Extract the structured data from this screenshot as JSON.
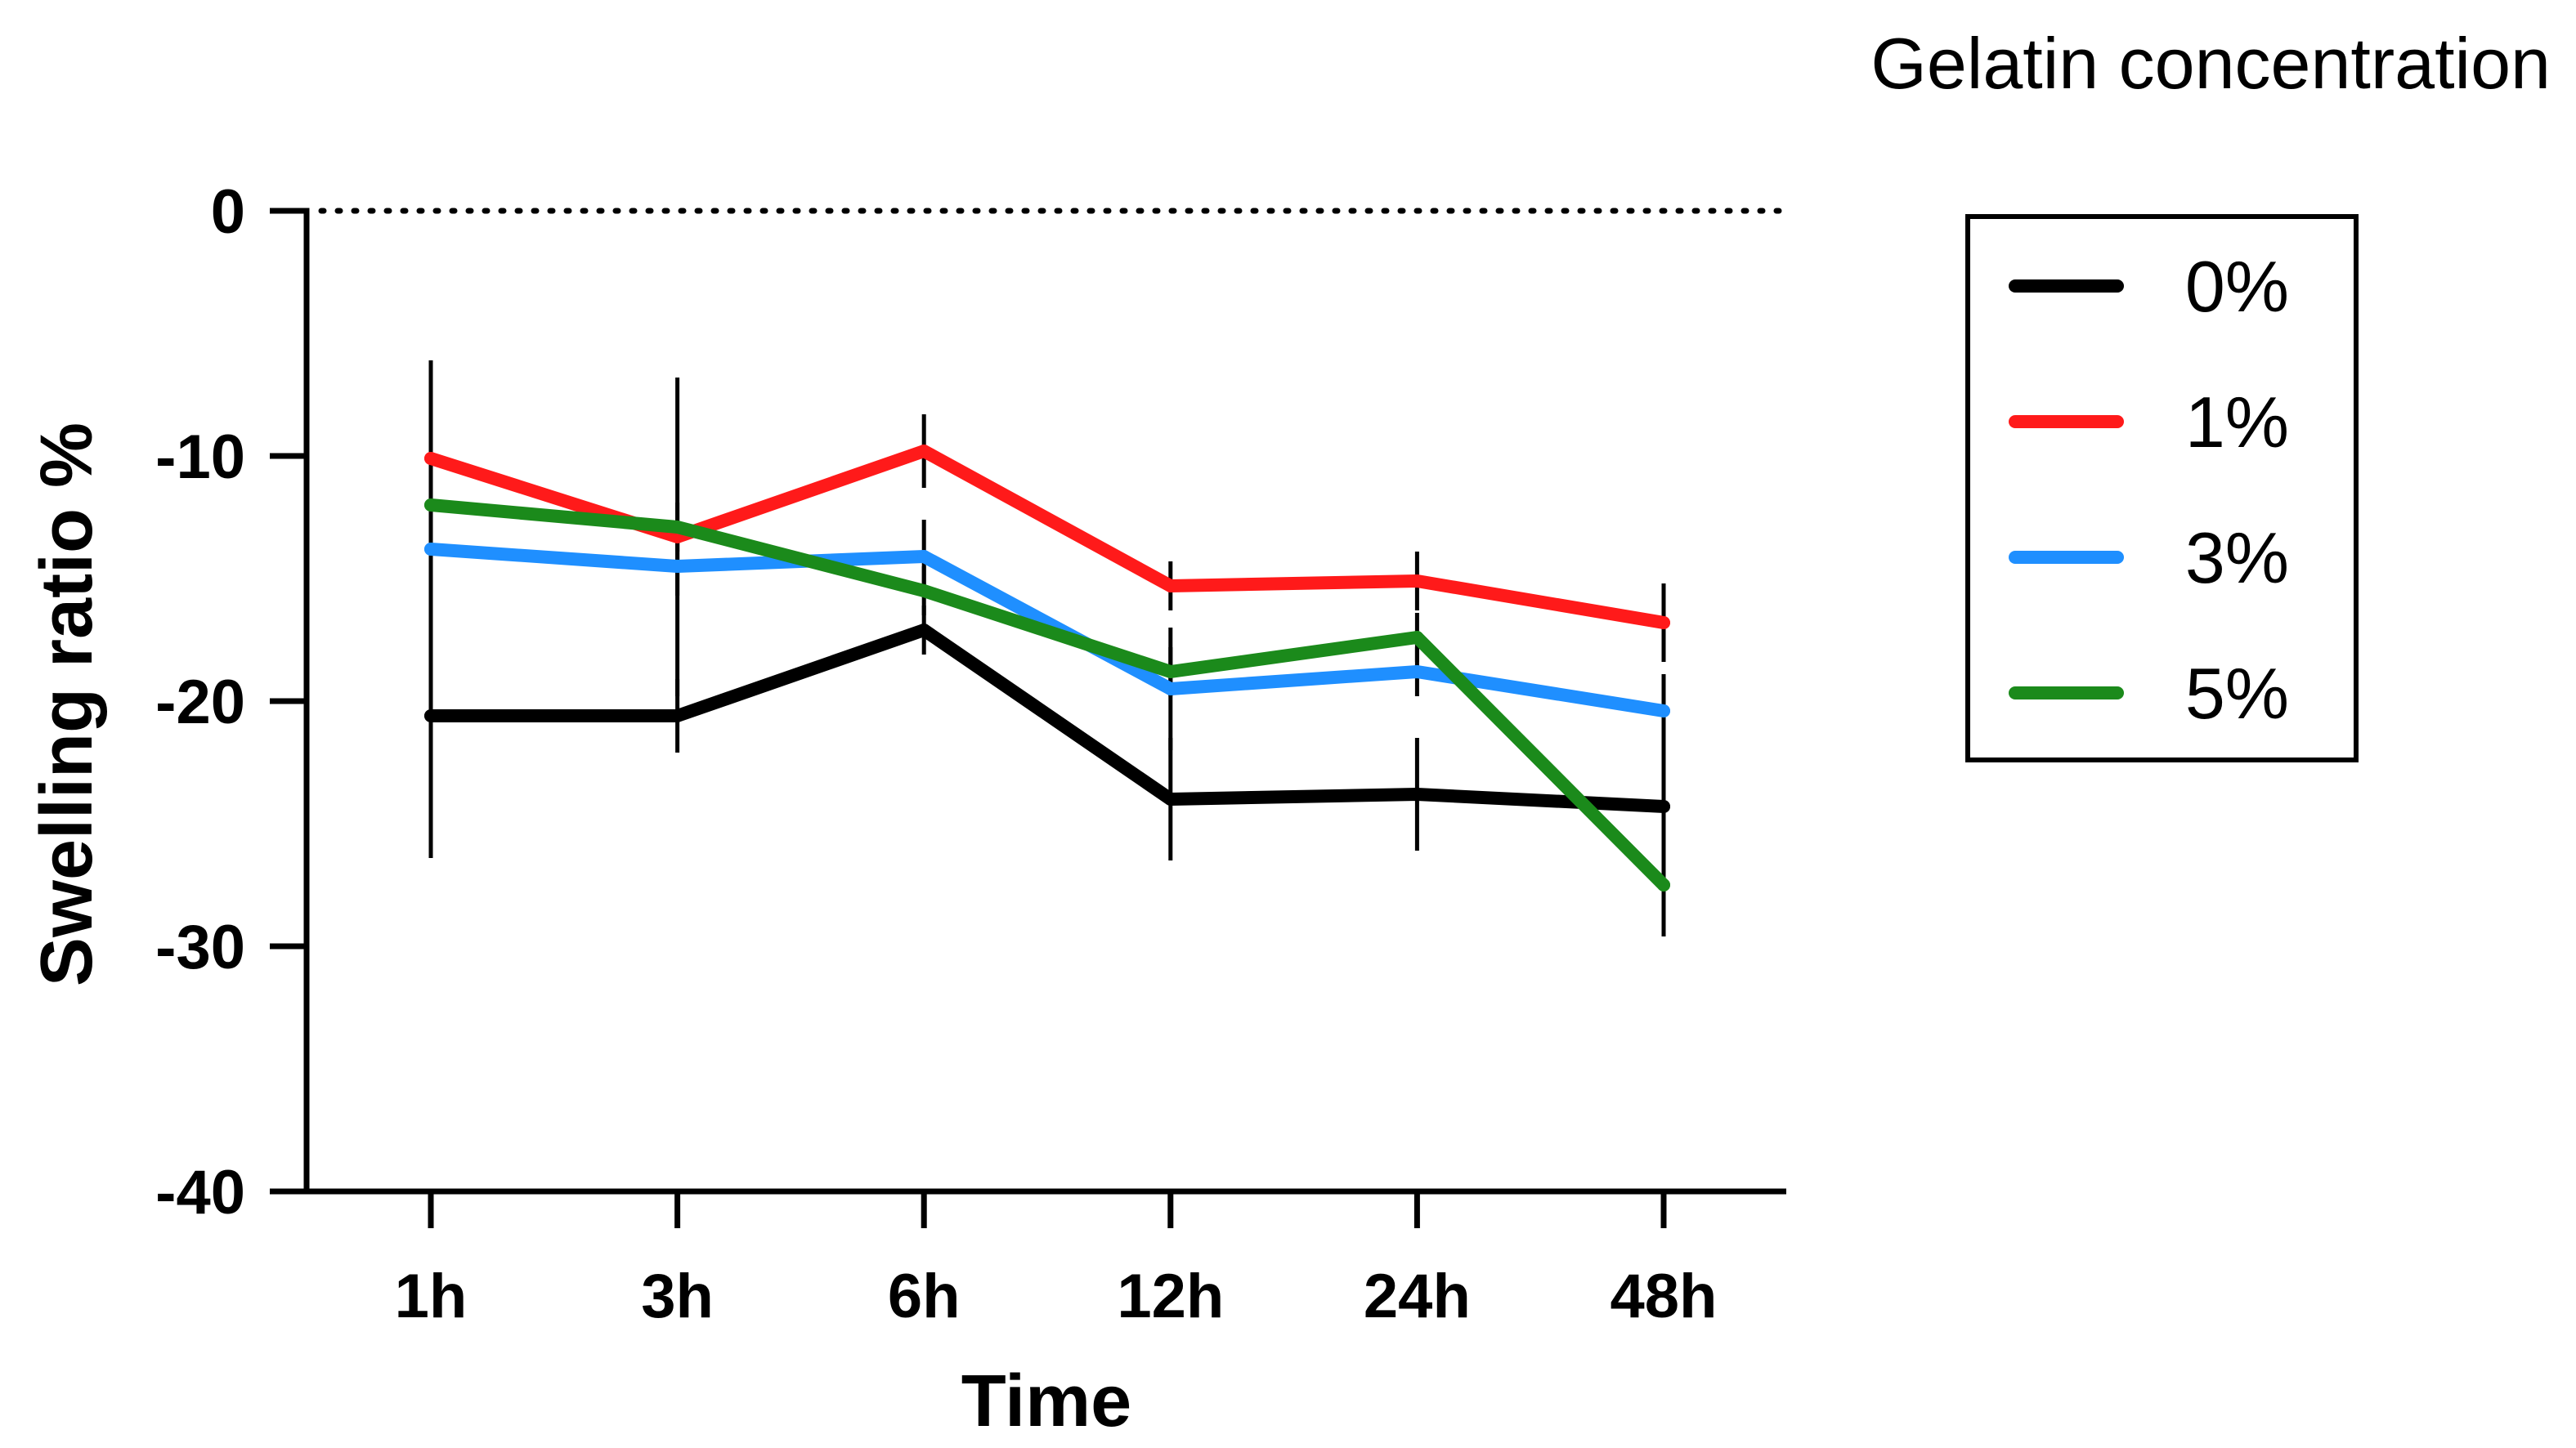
{
  "chart_data": {
    "type": "line",
    "title": "",
    "xlabel": "Time",
    "ylabel": "Swelling ratio %",
    "categories": [
      "1h",
      "3h",
      "6h",
      "12h",
      "24h",
      "48h"
    ],
    "ylim": [
      -40,
      0
    ],
    "yticks": [
      0,
      -10,
      -20,
      -30,
      -40
    ],
    "reference_line": {
      "y": 0,
      "style": "dotted"
    },
    "legend": {
      "title": "Gelatin concentration",
      "position": "right"
    },
    "series": [
      {
        "name": "0%",
        "color": "#000000",
        "values": [
          -20.6,
          -20.6,
          -17.1,
          -24.0,
          -23.8,
          -24.3
        ],
        "errors": [
          5.8,
          1.5,
          1.0,
          2.5,
          2.3,
          5.3
        ]
      },
      {
        "name": "1%",
        "color": "#ff1a1a",
        "values": [
          -10.1,
          -13.3,
          -9.8,
          -15.3,
          -15.1,
          -16.8
        ],
        "errors": [
          4.0,
          6.5,
          1.5,
          1.0,
          1.2,
          1.6
        ]
      },
      {
        "name": "3%",
        "color": "#1f8fff",
        "values": [
          -13.8,
          -14.5,
          -14.1,
          -19.5,
          -18.8,
          -20.4
        ],
        "errors": [
          1.0,
          1.2,
          1.5,
          2.5,
          1.0,
          1.5
        ]
      },
      {
        "name": "5%",
        "color": "#1b8a1b",
        "values": [
          -12.0,
          -12.9,
          -15.5,
          -18.8,
          -17.4,
          -27.5
        ],
        "errors": [
          1.0,
          1.0,
          1.0,
          1.0,
          1.0,
          2.0
        ]
      }
    ]
  }
}
